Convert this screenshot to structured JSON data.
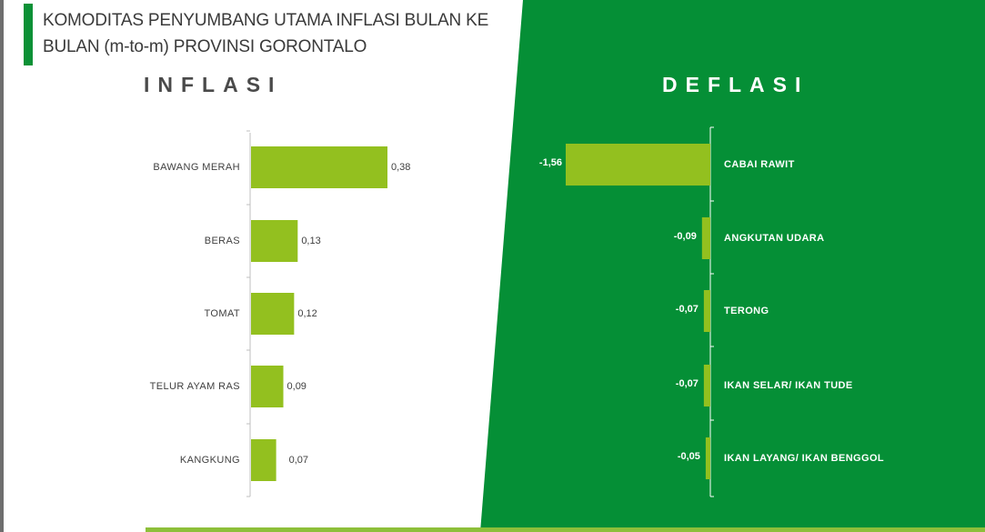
{
  "title": {
    "line1": "KOMODITAS PENYUMBANG UTAMA INFLASI BULAN KE",
    "line2": "BULAN (m-to-m) PROVINSI GORONTALO"
  },
  "colors": {
    "panel_green": "#058f36",
    "accent": "#0c9136",
    "bar": "#93c01f"
  },
  "chart_data": [
    {
      "type": "bar",
      "orientation": "horizontal",
      "title": "INFLASI",
      "categories": [
        "BAWANG MERAH",
        "BERAS",
        "TOMAT",
        "TELUR AYAM RAS",
        "KANGKUNG"
      ],
      "values": [
        0.38,
        0.13,
        0.12,
        0.09,
        0.07
      ],
      "value_labels": [
        "0,38",
        "0,13",
        "0,12",
        "0,09",
        "0,07"
      ],
      "xlim": [
        0,
        0.4
      ]
    },
    {
      "type": "bar",
      "orientation": "horizontal",
      "title": "DEFLASI",
      "categories": [
        "CABAI RAWIT",
        "ANGKUTAN UDARA",
        "TERONG",
        "IKAN SELAR/ IKAN TUDE",
        "IKAN LAYANG/ IKAN BENGGOL"
      ],
      "values": [
        -1.56,
        -0.09,
        -0.07,
        -0.07,
        -0.05
      ],
      "value_labels": [
        "-1,56",
        "-0,09",
        "-0,07",
        "-0,07",
        "-0,05"
      ],
      "xlim": [
        -1.56,
        0
      ]
    }
  ]
}
